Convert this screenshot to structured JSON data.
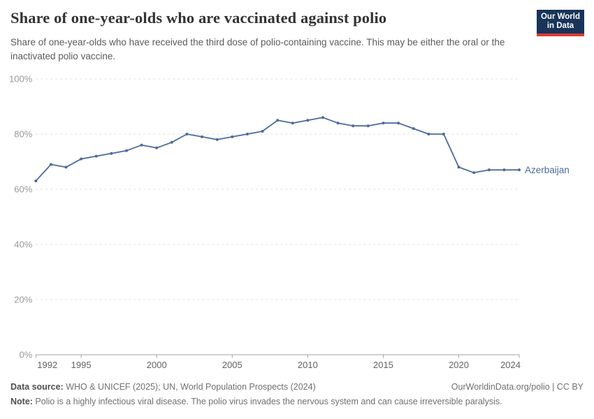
{
  "header": {
    "title": "Share of one-year-olds who are vaccinated against polio",
    "subtitle": "Share of one-year-olds who have received the third dose of polio-containing vaccine. This may be either the oral or the inactivated polio vaccine.",
    "logo": {
      "line1": "Our World",
      "line2": "in Data",
      "bg_color": "#183459",
      "accent_color": "#dc3a34"
    }
  },
  "chart_data": {
    "type": "line",
    "title": "Share of one-year-olds who are vaccinated against polio",
    "xlabel": "",
    "ylabel": "",
    "xlim": [
      1992,
      2024
    ],
    "ylim": [
      0,
      100
    ],
    "x_ticks": [
      1992,
      1995,
      2000,
      2005,
      2010,
      2015,
      2020,
      2024
    ],
    "y_ticks": [
      0,
      20,
      40,
      60,
      80,
      100
    ],
    "y_tick_suffix": "%",
    "grid": "horizontal-dashed",
    "legend_position": "end-of-line",
    "line_color": "#4C6A9C",
    "grid_color": "#e0e0e0",
    "axis_color": "#a3a3a3",
    "y_label_color": "#999999",
    "x_label_color": "#636363",
    "series": [
      {
        "name": "Azerbaijan",
        "x": [
          1992,
          1993,
          1994,
          1995,
          1996,
          1997,
          1998,
          1999,
          2000,
          2001,
          2002,
          2003,
          2004,
          2005,
          2006,
          2007,
          2008,
          2009,
          2010,
          2011,
          2012,
          2013,
          2014,
          2015,
          2016,
          2017,
          2018,
          2019,
          2020,
          2021,
          2022,
          2023,
          2024
        ],
        "values": [
          63,
          69,
          68,
          71,
          72,
          73,
          74,
          76,
          75,
          77,
          80,
          79,
          78,
          79,
          80,
          81,
          85,
          84,
          85,
          86,
          84,
          83,
          83,
          84,
          84,
          82,
          80,
          80,
          68,
          66,
          67,
          67,
          67
        ]
      }
    ]
  },
  "footer": {
    "data_source_label": "Data source:",
    "data_source_text": " WHO & UNICEF (2025); UN, World Population Prospects (2024)",
    "attribution": "OurWorldinData.org/polio | CC BY",
    "note_label": "Note:",
    "note_text": " Polio is a highly infectious viral disease. The polio virus invades the nervous system and can cause irreversible paralysis."
  }
}
